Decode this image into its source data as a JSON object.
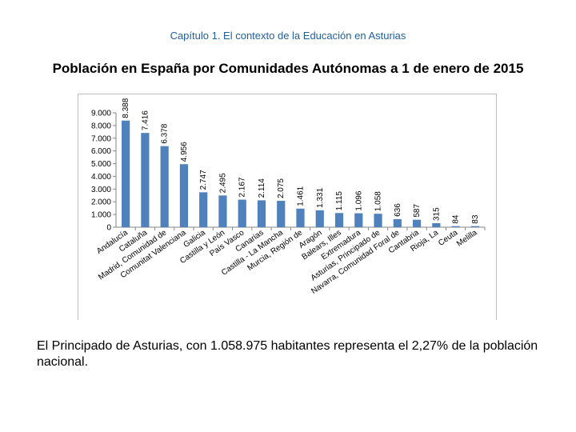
{
  "header": {
    "chapter": "Capítulo 1. El contexto de la Educación en Asturias"
  },
  "title": "Población en España por Comunidades Autónomas a 1 de enero de 2015",
  "chart_data": {
    "type": "bar",
    "title": "",
    "xlabel": "",
    "ylabel": "",
    "ylim": [
      0,
      9000
    ],
    "yticks": [
      0,
      1000,
      2000,
      3000,
      4000,
      5000,
      6000,
      7000,
      8000,
      9000
    ],
    "ytick_labels": [
      "0",
      "1.000",
      "2.000",
      "3.000",
      "4.000",
      "5.000",
      "6.000",
      "7.000",
      "8.000",
      "9.000"
    ],
    "grid": false,
    "bar_color": "#4f81bd",
    "categories": [
      "Andalucía",
      "Cataluña",
      "Madrid, Comunidad de",
      "Comunitat Valenciana",
      "Galicia",
      "Castilla y León",
      "País Vasco",
      "Canarias",
      "Castilla - La Mancha",
      "Murcia, Región de",
      "Aragón",
      "Balears, Illes",
      "Extremadura",
      "Asturias, Principado de",
      "Navarra, Comunidad Foral de",
      "Cantabria",
      "Rioja, La",
      "Ceuta",
      "Melilla"
    ],
    "values": [
      8388,
      7416,
      6378,
      4956,
      2747,
      2495,
      2167,
      2114,
      2075,
      1461,
      1331,
      1115,
      1096,
      1058,
      636,
      587,
      315,
      84,
      83
    ],
    "value_labels": [
      "8.388",
      "7.416",
      "6.378",
      "4.956",
      "2.747",
      "2.495",
      "2.167",
      "2.114",
      "2.075",
      "1.461",
      "1.331",
      "1.115",
      "1.096",
      "1.058",
      "636",
      "587",
      "315",
      "84",
      "83"
    ]
  },
  "body_text": "El Principado de Asturias, con 1.058.975 habitantes representa el 2,27% de la población nacional."
}
